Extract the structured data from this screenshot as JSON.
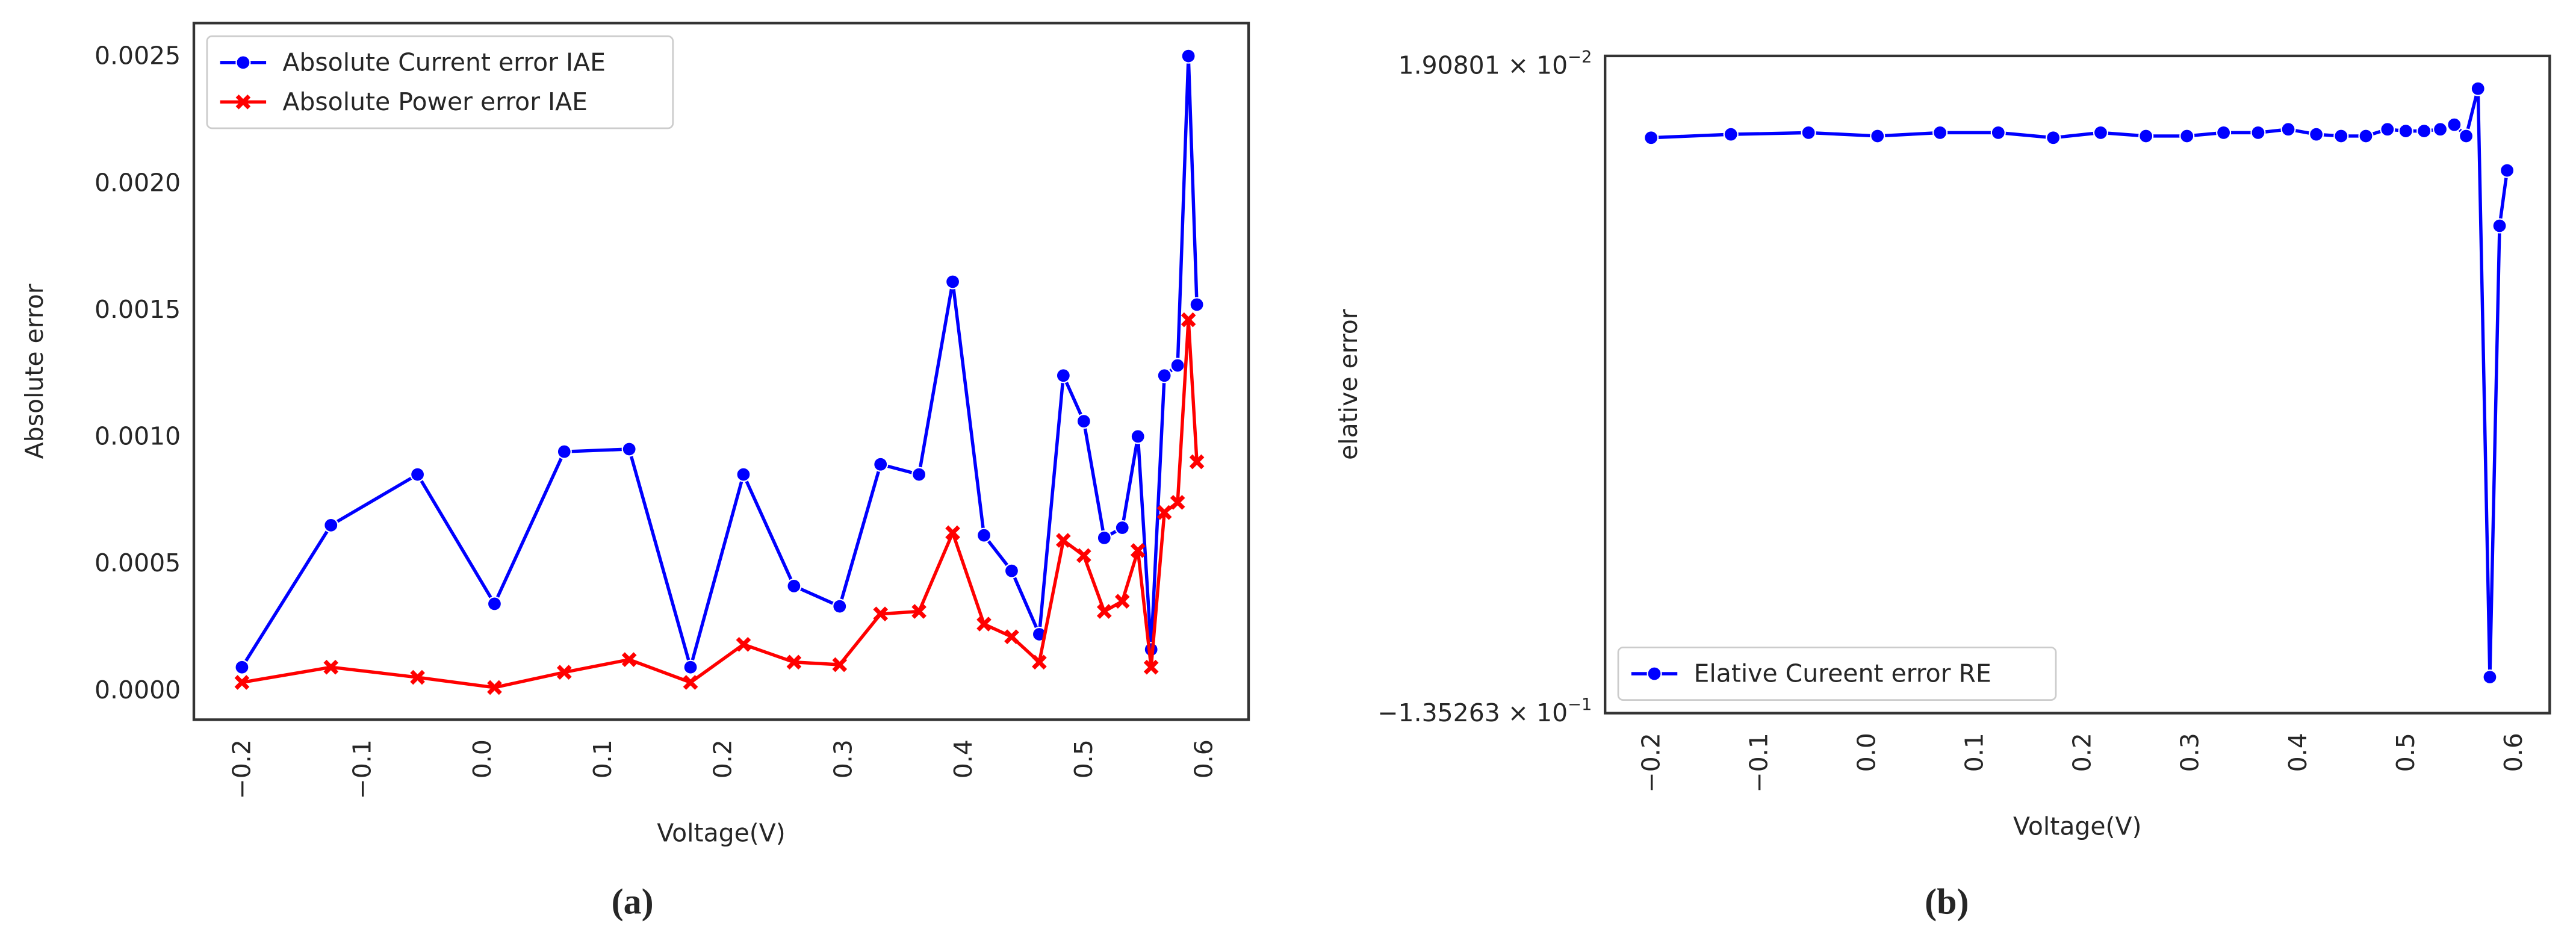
{
  "chart_data": [
    {
      "type": "line",
      "caption": "(a)",
      "xlabel": "Voltage(V)",
      "ylabel": "Absolute error",
      "legend": "upper left",
      "grid": false,
      "x": [
        -0.2,
        -0.126,
        -0.054,
        0.01,
        0.068,
        0.122,
        0.173,
        0.217,
        0.259,
        0.297,
        0.331,
        0.363,
        0.391,
        0.417,
        0.44,
        0.463,
        0.483,
        0.5,
        0.517,
        0.532,
        0.545,
        0.556,
        0.567,
        0.578,
        0.587,
        0.594
      ],
      "xlim": [
        -0.24,
        0.637
      ],
      "xticks": [
        {
          "value": -0.2,
          "label": "−0.2"
        },
        {
          "value": -0.1,
          "label": "−0.1"
        },
        {
          "value": 0,
          "label": "0.0"
        },
        0.1,
        0.2,
        0.3,
        0.4,
        0.5,
        0.6
      ],
      "ylim": [
        -0.000117,
        0.00263
      ],
      "yticks": [
        {
          "value": 0,
          "label": "0.0000"
        },
        {
          "value": 0.0005,
          "label": "0.0005"
        },
        {
          "value": 0.001,
          "label": "0.0010"
        },
        {
          "value": 0.0015,
          "label": "0.0015"
        },
        {
          "value": 0.002,
          "label": "0.0020"
        },
        {
          "value": 0.0025,
          "label": "0.0025"
        }
      ],
      "series": [
        {
          "name": "Absolute Current error IAE",
          "color": "#0000ff",
          "marker": "circle",
          "values": [
            9e-05,
            0.00065,
            0.00085,
            0.00034,
            0.00094,
            0.00095,
            9e-05,
            0.00085,
            0.00041,
            0.00033,
            0.00089,
            0.00085,
            0.00161,
            0.00061,
            0.00047,
            0.00022,
            0.00124,
            0.00106,
            0.0006,
            0.00064,
            0.001,
            0.00016,
            0.00124,
            0.00128,
            0.0025,
            0.00152
          ]
        },
        {
          "name": "Absolute Power error IAE",
          "color": "#ff0000",
          "marker": "x",
          "values": [
            3e-05,
            9e-05,
            5e-05,
            1e-05,
            7e-05,
            0.00012,
            3e-05,
            0.00018,
            0.00011,
            0.0001,
            0.0003,
            0.00031,
            0.00062,
            0.00026,
            0.00021,
            0.00011,
            0.00059,
            0.00053,
            0.00031,
            0.00035,
            0.00055,
            9e-05,
            0.0007,
            0.00074,
            0.00146,
            0.0009
          ]
        }
      ]
    },
    {
      "type": "line",
      "caption": "(b)",
      "xlabel": "Voltage(V)",
      "ylabel": "elative error",
      "legend": "lower left",
      "grid": false,
      "x": [
        -0.2,
        -0.126,
        -0.054,
        0.01,
        0.068,
        0.122,
        0.173,
        0.217,
        0.259,
        0.297,
        0.331,
        0.363,
        0.391,
        0.417,
        0.44,
        0.463,
        0.483,
        0.5,
        0.517,
        0.532,
        0.545,
        0.556,
        0.567,
        0.578,
        0.587,
        0.594
      ],
      "xlim": [
        -0.2427,
        0.6335
      ],
      "xticks": [
        {
          "value": -0.2,
          "label": "−0.2"
        },
        {
          "value": -0.1,
          "label": "−0.1"
        },
        {
          "value": 0,
          "label": "0.0"
        },
        0.1,
        0.2,
        0.3,
        0.4,
        0.5,
        0.6
      ],
      "ylim": [
        -0.1353,
        0.0214
      ],
      "yticks": [
        {
          "value": 0.0190801,
          "label": "1.90801 × 10",
          "exponent": "−2"
        },
        {
          "value": -0.135263,
          "label": "−1.35263 × 10",
          "exponent": "−1"
        }
      ],
      "series": [
        {
          "name": "Elative Cureent error RE",
          "color": "#0000ff",
          "marker": "circle",
          "values": [
            0.0019,
            0.0027,
            0.0031,
            0.0023,
            0.0031,
            0.0031,
            0.0019,
            0.0031,
            0.0023,
            0.0023,
            0.0031,
            0.0031,
            0.0039,
            0.0027,
            0.0023,
            0.0023,
            0.0039,
            0.0035,
            0.0035,
            0.0039,
            0.005,
            0.0023,
            0.0136,
            -0.1267,
            -0.0191,
            -0.0059
          ]
        }
      ]
    }
  ]
}
